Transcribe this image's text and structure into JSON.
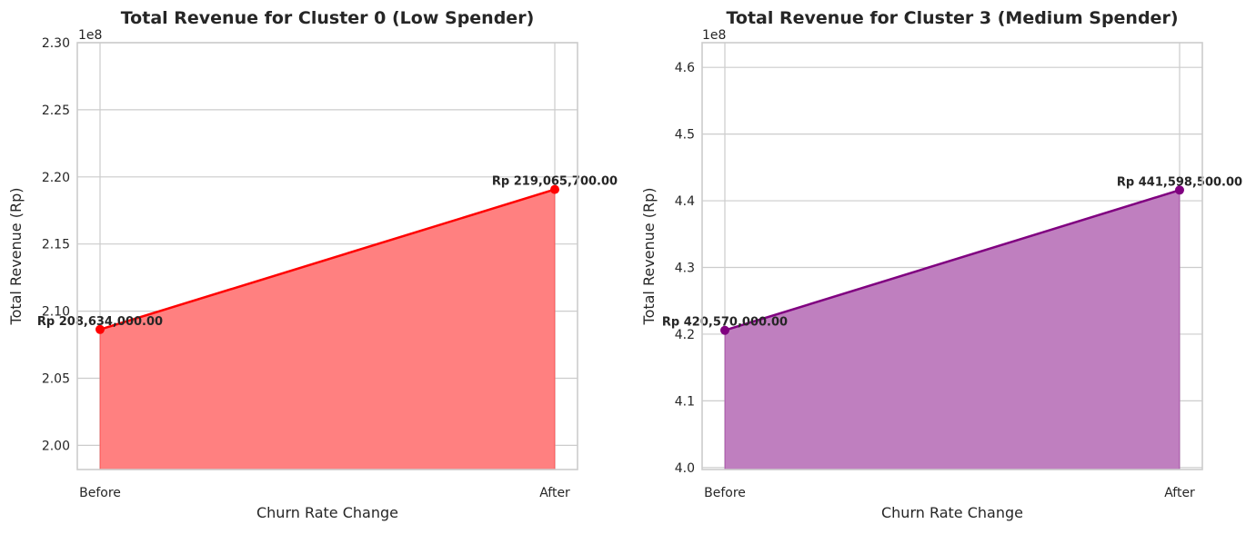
{
  "chart_data": [
    {
      "type": "area",
      "title": "Total Revenue for Cluster 0 (Low Spender)",
      "xlabel": "Churn Rate Change",
      "ylabel": "Total Revenue (Rp)",
      "y_offset_label": "1e8",
      "categories": [
        "Before",
        "After"
      ],
      "values": [
        208634000,
        219065700
      ],
      "data_labels": [
        "Rp 208,634,000.00",
        "Rp 219,065,700.00"
      ],
      "ylim": [
        198200000,
        230000000
      ],
      "yticks": [
        2.0,
        2.05,
        2.1,
        2.15,
        2.2,
        2.25,
        2.3
      ],
      "ytick_labels": [
        "2.00",
        "2.05",
        "2.10",
        "2.15",
        "2.20",
        "2.25",
        "2.30"
      ],
      "line_color": "#ff0000",
      "fill_color": "#ff8080",
      "grid": true
    },
    {
      "type": "area",
      "title": "Total Revenue for Cluster 3 (Medium Spender)",
      "xlabel": "Churn Rate Change",
      "ylabel": "Total Revenue (Rp)",
      "y_offset_label": "1e8",
      "categories": [
        "Before",
        "After"
      ],
      "values": [
        420570000,
        441598500
      ],
      "data_labels": [
        "Rp 420,570,000.00",
        "Rp 441,598,500.00"
      ],
      "ylim": [
        399700000,
        463700000
      ],
      "yticks": [
        4.0,
        4.1,
        4.2,
        4.3,
        4.4,
        4.5,
        4.6
      ],
      "ytick_labels": [
        "4.0",
        "4.1",
        "4.2",
        "4.3",
        "4.4",
        "4.5",
        "4.6"
      ],
      "line_color": "#800080",
      "fill_color": "#bf7fbf",
      "grid": true
    }
  ]
}
